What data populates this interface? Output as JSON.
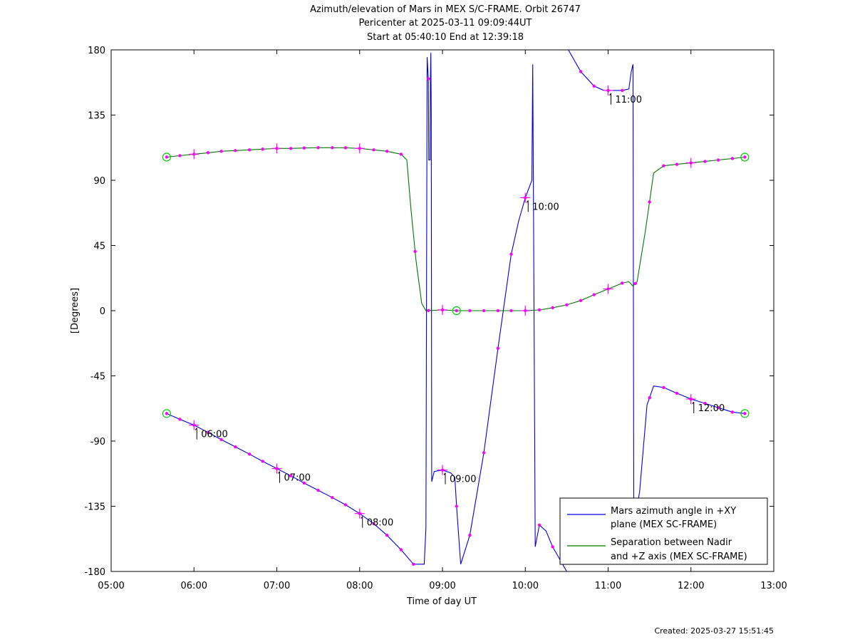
{
  "header": {
    "title_line1": "Azimuth/elevation of Mars in MEX S/C-FRAME.  Orbit 26747",
    "title_line2": "Pericenter at 2025-03-11 09:09:44UT",
    "title_line3": "Start at 05:40:10 End at 12:39:18"
  },
  "footer": {
    "created": "Created: 2025-03-27 15:51:45"
  },
  "colors": {
    "azimuth": "#0000dd",
    "separation": "#007700",
    "marker": "#ff00ff",
    "circle": "#00cc00"
  },
  "chart_data": {
    "type": "line",
    "xlabel": "Time of day UT",
    "ylabel": "[Degrees]",
    "xlim": [
      5.0,
      13.0
    ],
    "ylim": [
      -180,
      180
    ],
    "x_ticks": [
      {
        "v": 5,
        "label": "05:00"
      },
      {
        "v": 6,
        "label": "06:00"
      },
      {
        "v": 7,
        "label": "07:00"
      },
      {
        "v": 8,
        "label": "08:00"
      },
      {
        "v": 9,
        "label": "09:00"
      },
      {
        "v": 10,
        "label": "10:00"
      },
      {
        "v": 11,
        "label": "11:00"
      },
      {
        "v": 12,
        "label": "12:00"
      },
      {
        "v": 13,
        "label": "13:00"
      }
    ],
    "y_ticks": [
      {
        "v": 180,
        "label": "180"
      },
      {
        "v": 135,
        "label": "135"
      },
      {
        "v": 90,
        "label": "90"
      },
      {
        "v": 45,
        "label": "45"
      },
      {
        "v": 0,
        "label": "0"
      },
      {
        "v": -45,
        "label": "-45"
      },
      {
        "v": -90,
        "label": "-90"
      },
      {
        "v": -135,
        "label": "-135"
      },
      {
        "v": -180,
        "label": "-180"
      }
    ],
    "legend_position": "bottom-right",
    "series": [
      {
        "name": "Mars azimuth angle in +XY plane (MEX SC-FRAME)",
        "legend_lines": [
          "Mars azimuth angle in +XY",
          "plane (MEX SC-FRAME)"
        ],
        "points": [
          [
            5.67,
            -71
          ],
          [
            5.83,
            -75
          ],
          [
            6.0,
            -79
          ],
          [
            6.17,
            -84
          ],
          [
            6.33,
            -89
          ],
          [
            6.5,
            -94
          ],
          [
            6.67,
            -99
          ],
          [
            6.83,
            -104
          ],
          [
            7.0,
            -109
          ],
          [
            7.17,
            -114
          ],
          [
            7.33,
            -119
          ],
          [
            7.5,
            -124
          ],
          [
            7.67,
            -129
          ],
          [
            7.83,
            -134
          ],
          [
            8.0,
            -140
          ],
          [
            8.17,
            -147
          ],
          [
            8.33,
            -155
          ],
          [
            8.5,
            -165
          ],
          [
            8.65,
            -175
          ],
          [
            8.78,
            -175
          ],
          [
            8.8,
            -150
          ],
          [
            8.815,
            175
          ],
          [
            8.83,
            160
          ],
          [
            8.835,
            104
          ],
          [
            8.85,
            104
          ],
          [
            8.855,
            160
          ],
          [
            8.86,
            178
          ],
          [
            8.865,
            135
          ],
          [
            8.87,
            -118
          ],
          [
            8.9,
            -111
          ],
          [
            9.0,
            -110
          ],
          [
            9.1,
            -112
          ],
          [
            9.15,
            -115
          ],
          [
            9.17,
            -135
          ],
          [
            9.22,
            -175
          ],
          [
            9.33,
            -155
          ],
          [
            9.5,
            -98
          ],
          [
            9.67,
            -26
          ],
          [
            9.83,
            39
          ],
          [
            9.92,
            62
          ],
          [
            10.0,
            78
          ],
          [
            10.08,
            90
          ],
          [
            10.09,
            170
          ],
          [
            10.1,
            60
          ],
          [
            10.12,
            -163
          ],
          [
            10.17,
            -148
          ],
          [
            10.25,
            -152
          ],
          [
            10.33,
            -163
          ],
          [
            10.5,
            -180
          ]
        ],
        "points_b": [
          [
            10.52,
            180
          ],
          [
            10.67,
            165
          ],
          [
            10.83,
            155
          ],
          [
            10.95,
            152
          ],
          [
            11.0,
            152
          ],
          [
            11.17,
            152
          ],
          [
            11.25,
            153
          ],
          [
            11.28,
            165
          ],
          [
            11.3,
            170
          ],
          [
            11.31,
            -130
          ],
          [
            11.35,
            -135
          ],
          [
            11.38,
            -125
          ],
          [
            11.47,
            -65
          ],
          [
            11.55,
            -52
          ],
          [
            11.67,
            -53
          ],
          [
            11.83,
            -57
          ],
          [
            12.0,
            -61
          ],
          [
            12.17,
            -64
          ],
          [
            12.33,
            -67
          ],
          [
            12.5,
            -70
          ],
          [
            12.65,
            -71
          ]
        ],
        "markers": [
          5.67,
          5.83,
          6.0,
          6.17,
          6.33,
          6.5,
          6.67,
          6.83,
          7.0,
          7.17,
          7.33,
          7.5,
          7.67,
          7.83,
          8.0,
          8.17,
          8.33,
          8.5,
          8.65,
          8.83,
          9.0,
          9.17,
          9.33,
          9.5,
          9.67,
          9.83,
          10.0,
          10.17,
          10.33,
          10.67,
          10.83,
          11.0,
          11.17,
          11.5,
          11.67,
          11.83,
          12.0,
          12.17,
          12.33,
          12.5,
          12.65
        ],
        "crosses": [
          {
            "x": 6.0,
            "y": -79
          },
          {
            "x": 7.0,
            "y": -109
          },
          {
            "x": 8.0,
            "y": -140
          },
          {
            "x": 9.0,
            "y": -110
          },
          {
            "x": 10.0,
            "y": 78
          },
          {
            "x": 11.0,
            "y": 152
          },
          {
            "x": 12.0,
            "y": -61
          }
        ]
      },
      {
        "name": "Separation between Nadir and +Z axis (MEX SC-FRAME)",
        "legend_lines": [
          "Separation between Nadir",
          "and +Z axis (MEX SC-FRAME)"
        ],
        "points": [
          [
            5.67,
            106
          ],
          [
            5.83,
            107
          ],
          [
            6.0,
            108
          ],
          [
            6.17,
            109
          ],
          [
            6.33,
            110
          ],
          [
            6.5,
            110.5
          ],
          [
            6.67,
            111
          ],
          [
            6.83,
            111.5
          ],
          [
            7.0,
            112
          ],
          [
            7.17,
            112
          ],
          [
            7.33,
            112.3
          ],
          [
            7.5,
            112.5
          ],
          [
            7.67,
            112.5
          ],
          [
            7.83,
            112.4
          ],
          [
            8.0,
            112
          ],
          [
            8.17,
            111
          ],
          [
            8.33,
            110
          ],
          [
            8.5,
            108
          ],
          [
            8.57,
            104
          ],
          [
            8.62,
            70
          ],
          [
            8.68,
            35
          ],
          [
            8.75,
            5
          ],
          [
            8.8,
            0
          ],
          [
            9.0,
            0.5
          ],
          [
            9.17,
            0
          ],
          [
            9.33,
            0
          ],
          [
            9.5,
            0
          ],
          [
            9.67,
            0
          ],
          [
            9.83,
            0
          ],
          [
            10.0,
            0
          ],
          [
            10.17,
            0.5
          ],
          [
            10.33,
            2
          ],
          [
            10.5,
            4
          ],
          [
            10.67,
            7
          ],
          [
            10.83,
            11
          ],
          [
            11.0,
            15
          ],
          [
            11.17,
            19
          ],
          [
            11.25,
            20
          ],
          [
            11.3,
            17
          ],
          [
            11.35,
            20
          ],
          [
            11.45,
            55
          ],
          [
            11.55,
            95
          ],
          [
            11.67,
            100
          ],
          [
            11.83,
            101
          ],
          [
            12.0,
            102
          ],
          [
            12.17,
            103
          ],
          [
            12.33,
            104
          ],
          [
            12.5,
            105
          ],
          [
            12.65,
            106
          ]
        ],
        "markers": [
          5.67,
          5.83,
          6.0,
          6.17,
          6.33,
          6.5,
          6.67,
          6.83,
          7.0,
          7.17,
          7.33,
          7.5,
          7.67,
          7.83,
          8.0,
          8.17,
          8.33,
          8.5,
          8.67,
          8.83,
          9.0,
          9.17,
          9.33,
          9.5,
          9.67,
          9.83,
          10.0,
          10.17,
          10.33,
          10.5,
          10.67,
          10.83,
          11.0,
          11.17,
          11.33,
          11.5,
          11.67,
          11.83,
          12.0,
          12.17,
          12.33,
          12.5,
          12.65
        ],
        "crosses": [
          {
            "x": 6.0,
            "y": 108
          },
          {
            "x": 7.0,
            "y": 112
          },
          {
            "x": 8.0,
            "y": 112
          },
          {
            "x": 9.0,
            "y": 0.5
          },
          {
            "x": 10.0,
            "y": 0
          },
          {
            "x": 11.0,
            "y": 15
          },
          {
            "x": 12.0,
            "y": 102
          }
        ]
      }
    ],
    "circles": [
      {
        "x": 5.67,
        "y": 106
      },
      {
        "x": 5.67,
        "y": -71
      },
      {
        "x": 9.17,
        "y": 0
      },
      {
        "x": 12.65,
        "y": 106
      },
      {
        "x": 12.65,
        "y": -71
      }
    ],
    "time_annotations": [
      {
        "x": 6.0,
        "y": -79,
        "label": "06:00"
      },
      {
        "x": 7.0,
        "y": -109,
        "label": "07:00"
      },
      {
        "x": 8.0,
        "y": -140,
        "label": "08:00"
      },
      {
        "x": 9.0,
        "y": -110,
        "label": "09:00"
      },
      {
        "x": 10.0,
        "y": 78,
        "label": "10:00"
      },
      {
        "x": 11.0,
        "y": 152,
        "label": "11:00"
      },
      {
        "x": 12.0,
        "y": -61,
        "label": "12:00"
      }
    ]
  }
}
